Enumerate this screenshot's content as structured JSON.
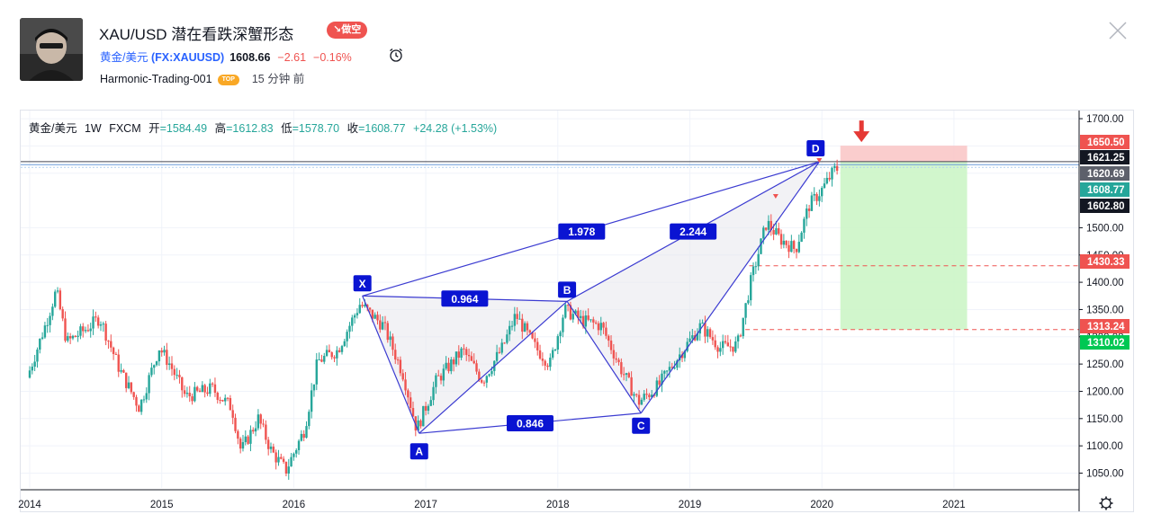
{
  "header": {
    "title": "XAU/USD 潜在看跌深蟹形态",
    "badge": "↘做空",
    "symbol_name": "黄金/美元",
    "symbol_code": "(FX:XAUUSD)",
    "price": "1608.66",
    "change": "−2.61",
    "change_pct": "−0.16%",
    "author": "Harmonic-Trading-001",
    "author_badge": "TOP",
    "time_ago": "15 分钟 前",
    "icons": [
      "avatar-photo",
      "alarm-clock-icon",
      "close-icon"
    ]
  },
  "legend": {
    "symbol": "黄金/美元",
    "interval": "1W",
    "exchange": "FXCM",
    "open_label": "开",
    "open": "=1584.49",
    "high_label": "高",
    "high": "=1612.83",
    "low_label": "低",
    "low": "=1578.70",
    "close_label": "收",
    "close": "=1608.77",
    "change": "+24.28 (+1.53%)"
  },
  "colors": {
    "up": "#26a69a",
    "down": "#ef5350",
    "pattern": "#3b3bd1",
    "label_bg": "#0a14d2",
    "target_green": "#ccf5c6",
    "stop_red": "#f9c4c4"
  },
  "chart_data": {
    "type": "candlestick",
    "ylim": [
      1020,
      1710
    ],
    "x_range": [
      "2014-01",
      "2021-12"
    ],
    "xticks": [
      "2014",
      "2015",
      "2016",
      "2017",
      "2018",
      "2019",
      "2020",
      "2021"
    ],
    "yticks": [
      "1050.00",
      "1100.00",
      "1150.00",
      "1200.00",
      "1250.00",
      "1300.00",
      "1350.00",
      "1400.00",
      "1450.00",
      "1500.00",
      "1700.00"
    ],
    "price_labels": [
      {
        "value": 1650.5,
        "text": "1650.50",
        "color": "#ef5350"
      },
      {
        "value": 1621.25,
        "text": "1621.25",
        "color": "#131722"
      },
      {
        "value": 1620.69,
        "text": "1620.69",
        "color": "#5d606b"
      },
      {
        "value": 1608.77,
        "text": "1608.77",
        "color": "#26a69a"
      },
      {
        "value": 1602.8,
        "text": "1602.80",
        "color": "#131722"
      },
      {
        "value": 1430.33,
        "text": "1430.33",
        "color": "#ef5350"
      },
      {
        "value": 1313.24,
        "text": "1313.24",
        "color": "#ef5350"
      },
      {
        "value": 1310.02,
        "text": "1310.02",
        "color": "#00c853"
      }
    ],
    "pattern_points": [
      {
        "label": "X",
        "t": 2016.52,
        "price": 1375
      },
      {
        "label": "A",
        "t": 2016.95,
        "price": 1123
      },
      {
        "label": "B",
        "t": 2018.07,
        "price": 1365
      },
      {
        "label": "C",
        "t": 2018.63,
        "price": 1160
      },
      {
        "label": "D",
        "t": 2019.98,
        "price": 1621
      }
    ],
    "ratios": [
      "1.978",
      "0.964",
      "2.244",
      "0.846"
    ],
    "series": [
      {
        "t": 2014.0,
        "price": 1225
      },
      {
        "t": 2014.15,
        "price": 1330
      },
      {
        "t": 2014.22,
        "price": 1385
      },
      {
        "t": 2014.3,
        "price": 1290
      },
      {
        "t": 2014.45,
        "price": 1315
      },
      {
        "t": 2014.55,
        "price": 1335
      },
      {
        "t": 2014.7,
        "price": 1240
      },
      {
        "t": 2014.85,
        "price": 1170
      },
      {
        "t": 2015.0,
        "price": 1280
      },
      {
        "t": 2015.08,
        "price": 1250
      },
      {
        "t": 2015.2,
        "price": 1190
      },
      {
        "t": 2015.4,
        "price": 1205
      },
      {
        "t": 2015.55,
        "price": 1170
      },
      {
        "t": 2015.62,
        "price": 1090
      },
      {
        "t": 2015.75,
        "price": 1150
      },
      {
        "t": 2015.85,
        "price": 1090
      },
      {
        "t": 2015.96,
        "price": 1055
      },
      {
        "t": 2016.1,
        "price": 1130
      },
      {
        "t": 2016.2,
        "price": 1255
      },
      {
        "t": 2016.35,
        "price": 1275
      },
      {
        "t": 2016.52,
        "price": 1360
      },
      {
        "t": 2016.7,
        "price": 1320
      },
      {
        "t": 2016.85,
        "price": 1230
      },
      {
        "t": 2016.95,
        "price": 1130
      },
      {
        "t": 2017.1,
        "price": 1220
      },
      {
        "t": 2017.3,
        "price": 1275
      },
      {
        "t": 2017.45,
        "price": 1220
      },
      {
        "t": 2017.6,
        "price": 1280
      },
      {
        "t": 2017.7,
        "price": 1340
      },
      {
        "t": 2017.85,
        "price": 1280
      },
      {
        "t": 2017.96,
        "price": 1250
      },
      {
        "t": 2018.07,
        "price": 1350
      },
      {
        "t": 2018.2,
        "price": 1330
      },
      {
        "t": 2018.35,
        "price": 1320
      },
      {
        "t": 2018.5,
        "price": 1240
      },
      {
        "t": 2018.63,
        "price": 1180
      },
      {
        "t": 2018.78,
        "price": 1210
      },
      {
        "t": 2018.95,
        "price": 1270
      },
      {
        "t": 2019.1,
        "price": 1320
      },
      {
        "t": 2019.25,
        "price": 1280
      },
      {
        "t": 2019.38,
        "price": 1285
      },
      {
        "t": 2019.48,
        "price": 1400
      },
      {
        "t": 2019.6,
        "price": 1510
      },
      {
        "t": 2019.7,
        "price": 1480
      },
      {
        "t": 2019.82,
        "price": 1460
      },
      {
        "t": 2019.92,
        "price": 1540
      },
      {
        "t": 2020.02,
        "price": 1570
      },
      {
        "t": 2020.12,
        "price": 1608
      }
    ]
  }
}
